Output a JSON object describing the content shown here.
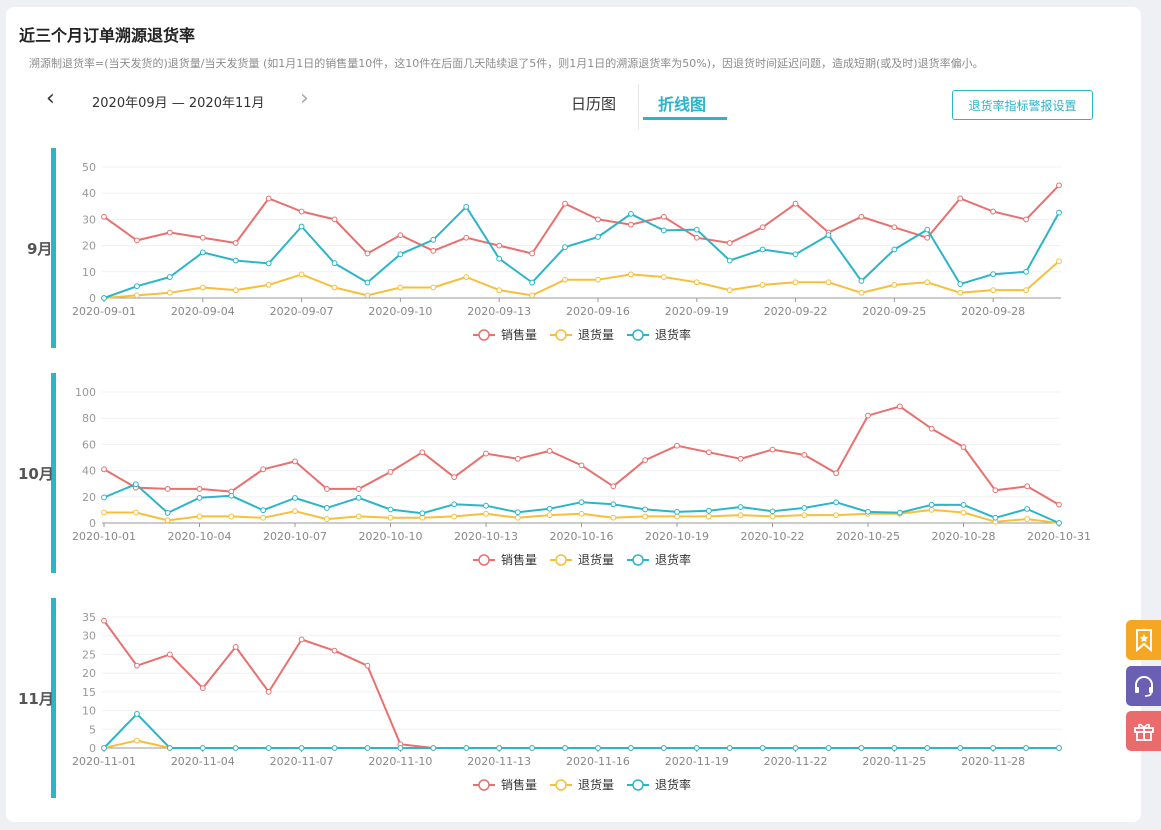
{
  "header": {
    "title": "近三个月订单溯源退货率",
    "description": "溯源制退货率=(当天发货的)退货量/当天发货量 (如1月1日的销售量10件，这10件在后面几天陆续退了5件，则1月1日的溯源退货率为50%)，因退货时间延迟问题，造成短期(或及时)退货率偏小。",
    "date_range": "2020年09月 — 2020年11月",
    "prev_icon": "chevron-left-icon",
    "next_icon": "chevron-right-icon"
  },
  "tabs": [
    {
      "label": "日历图",
      "active": false
    },
    {
      "label": "折线图",
      "active": true
    }
  ],
  "alert_button": "退货率指标警报设置",
  "colors": {
    "accent": "#2bb5c9",
    "sales": "#e8706f",
    "returns": "#f7bf3a",
    "rate": "#2bb5c9"
  },
  "side_icons": [
    "bookmark-icon",
    "headset-icon",
    "gift-icon"
  ],
  "chart_data": [
    {
      "type": "line",
      "month_label": "9月",
      "ylim": [
        0,
        50
      ],
      "yticks": [
        0,
        10,
        20,
        30,
        40,
        50
      ],
      "x": [
        "2020-09-01",
        "2020-09-02",
        "2020-09-03",
        "2020-09-04",
        "2020-09-05",
        "2020-09-06",
        "2020-09-07",
        "2020-09-08",
        "2020-09-09",
        "2020-09-10",
        "2020-09-11",
        "2020-09-12",
        "2020-09-13",
        "2020-09-14",
        "2020-09-15",
        "2020-09-16",
        "2020-09-17",
        "2020-09-18",
        "2020-09-19",
        "2020-09-20",
        "2020-09-21",
        "2020-09-22",
        "2020-09-23",
        "2020-09-24",
        "2020-09-25",
        "2020-09-26",
        "2020-09-27",
        "2020-09-28",
        "2020-09-29",
        "2020-09-30"
      ],
      "x_tick_labels": [
        "2020-09-01",
        "2020-09-04",
        "2020-09-07",
        "2020-09-10",
        "2020-09-13",
        "2020-09-16",
        "2020-09-19",
        "2020-09-22",
        "2020-09-25",
        "2020-09-28"
      ],
      "series": [
        {
          "name": "销售量",
          "color": "#e8706f",
          "values": [
            31,
            22,
            25,
            23,
            21,
            38,
            33,
            30,
            17,
            24,
            18,
            23,
            20,
            17,
            36,
            30,
            28,
            31,
            23,
            21,
            27,
            36,
            25,
            31,
            27,
            23,
            38,
            33,
            30,
            43
          ]
        },
        {
          "name": "退货量",
          "color": "#f7bf3a",
          "values": [
            0,
            1,
            2,
            4,
            3,
            5,
            9,
            4,
            1,
            4,
            4,
            8,
            3,
            1,
            7,
            7,
            9,
            8,
            6,
            3,
            5,
            6,
            6,
            2,
            5,
            6,
            2,
            3,
            3,
            14
          ]
        },
        {
          "name": "退货率",
          "color": "#2bb5c9",
          "values": [
            0,
            4.5,
            8,
            17.4,
            14.3,
            13.2,
            27.3,
            13.3,
            5.9,
            16.7,
            22.2,
            34.8,
            15,
            5.9,
            19.4,
            23.3,
            32.1,
            25.8,
            26.1,
            14.3,
            18.5,
            16.7,
            24,
            6.5,
            18.5,
            26.1,
            5.3,
            9.1,
            10,
            32.6
          ]
        }
      ],
      "legend": [
        "销售量",
        "退货量",
        "退货率"
      ]
    },
    {
      "type": "line",
      "month_label": "10月",
      "ylim": [
        0,
        100
      ],
      "yticks": [
        0,
        20,
        40,
        60,
        80,
        100
      ],
      "x": [
        "2020-10-01",
        "2020-10-02",
        "2020-10-03",
        "2020-10-04",
        "2020-10-05",
        "2020-10-06",
        "2020-10-07",
        "2020-10-08",
        "2020-10-09",
        "2020-10-10",
        "2020-10-11",
        "2020-10-12",
        "2020-10-13",
        "2020-10-14",
        "2020-10-15",
        "2020-10-16",
        "2020-10-17",
        "2020-10-18",
        "2020-10-19",
        "2020-10-20",
        "2020-10-21",
        "2020-10-22",
        "2020-10-23",
        "2020-10-24",
        "2020-10-25",
        "2020-10-26",
        "2020-10-27",
        "2020-10-28",
        "2020-10-29",
        "2020-10-30",
        "2020-10-31"
      ],
      "x_tick_labels": [
        "2020-10-01",
        "2020-10-04",
        "2020-10-07",
        "2020-10-10",
        "2020-10-13",
        "2020-10-16",
        "2020-10-19",
        "2020-10-22",
        "2020-10-25",
        "2020-10-28",
        "2020-10-31"
      ],
      "series": [
        {
          "name": "销售量",
          "color": "#e8706f",
          "values": [
            41,
            27,
            26,
            26,
            24,
            41,
            47,
            26,
            26,
            39,
            54,
            35,
            53,
            49,
            55,
            44,
            28,
            48,
            59,
            54,
            49,
            56,
            52,
            38,
            82,
            89,
            72,
            58,
            25,
            28,
            14
          ]
        },
        {
          "name": "退货量",
          "color": "#f7bf3a",
          "values": [
            8,
            8,
            2,
            5,
            5,
            4,
            9,
            3,
            5,
            4,
            4,
            5,
            7,
            4,
            6,
            7,
            4,
            5,
            5,
            5,
            6,
            5,
            6,
            6,
            7,
            7,
            10,
            8,
            1,
            3,
            0
          ]
        },
        {
          "name": "退货率",
          "color": "#2bb5c9",
          "values": [
            19.5,
            29.6,
            7.7,
            19.2,
            20.8,
            9.8,
            19.1,
            11.5,
            19.2,
            10.3,
            7.4,
            14.3,
            13.2,
            8.2,
            10.9,
            15.9,
            14.3,
            10.4,
            8.5,
            9.3,
            12.2,
            8.9,
            11.5,
            15.8,
            8.5,
            7.9,
            13.9,
            13.8,
            4,
            10.7,
            0
          ]
        }
      ],
      "legend": [
        "销售量",
        "退货量",
        "退货率"
      ]
    },
    {
      "type": "line",
      "month_label": "11月",
      "ylim": [
        0,
        35
      ],
      "yticks": [
        0,
        5,
        10,
        15,
        20,
        25,
        30,
        35
      ],
      "x": [
        "2020-11-01",
        "2020-11-02",
        "2020-11-03",
        "2020-11-04",
        "2020-11-05",
        "2020-11-06",
        "2020-11-07",
        "2020-11-08",
        "2020-11-09",
        "2020-11-10",
        "2020-11-11",
        "2020-11-12",
        "2020-11-13",
        "2020-11-14",
        "2020-11-15",
        "2020-11-16",
        "2020-11-17",
        "2020-11-18",
        "2020-11-19",
        "2020-11-20",
        "2020-11-21",
        "2020-11-22",
        "2020-11-23",
        "2020-11-24",
        "2020-11-25",
        "2020-11-26",
        "2020-11-27",
        "2020-11-28",
        "2020-11-29",
        "2020-11-30"
      ],
      "x_tick_labels": [
        "2020-11-01",
        "2020-11-04",
        "2020-11-07",
        "2020-11-10",
        "2020-11-13",
        "2020-11-16",
        "2020-11-19",
        "2020-11-22",
        "2020-11-25",
        "2020-11-28"
      ],
      "series": [
        {
          "name": "销售量",
          "color": "#e8706f",
          "values": [
            34,
            22,
            25,
            16,
            27,
            15,
            29,
            26,
            22,
            1,
            0,
            0,
            0,
            0,
            0,
            0,
            0,
            0,
            0,
            0,
            0,
            0,
            0,
            0,
            0,
            0,
            0,
            0,
            0,
            0
          ]
        },
        {
          "name": "退货量",
          "color": "#f7bf3a",
          "values": [
            0,
            2,
            0,
            0,
            0,
            0,
            0,
            0,
            0,
            0,
            0,
            0,
            0,
            0,
            0,
            0,
            0,
            0,
            0,
            0,
            0,
            0,
            0,
            0,
            0,
            0,
            0,
            0,
            0,
            0
          ]
        },
        {
          "name": "退货率",
          "color": "#2bb5c9",
          "values": [
            0,
            9.1,
            0,
            0,
            0,
            0,
            0,
            0,
            0,
            0,
            0,
            0,
            0,
            0,
            0,
            0,
            0,
            0,
            0,
            0,
            0,
            0,
            0,
            0,
            0,
            0,
            0,
            0,
            0,
            0
          ]
        }
      ],
      "legend": [
        "销售量",
        "退货量",
        "退货率"
      ]
    }
  ]
}
